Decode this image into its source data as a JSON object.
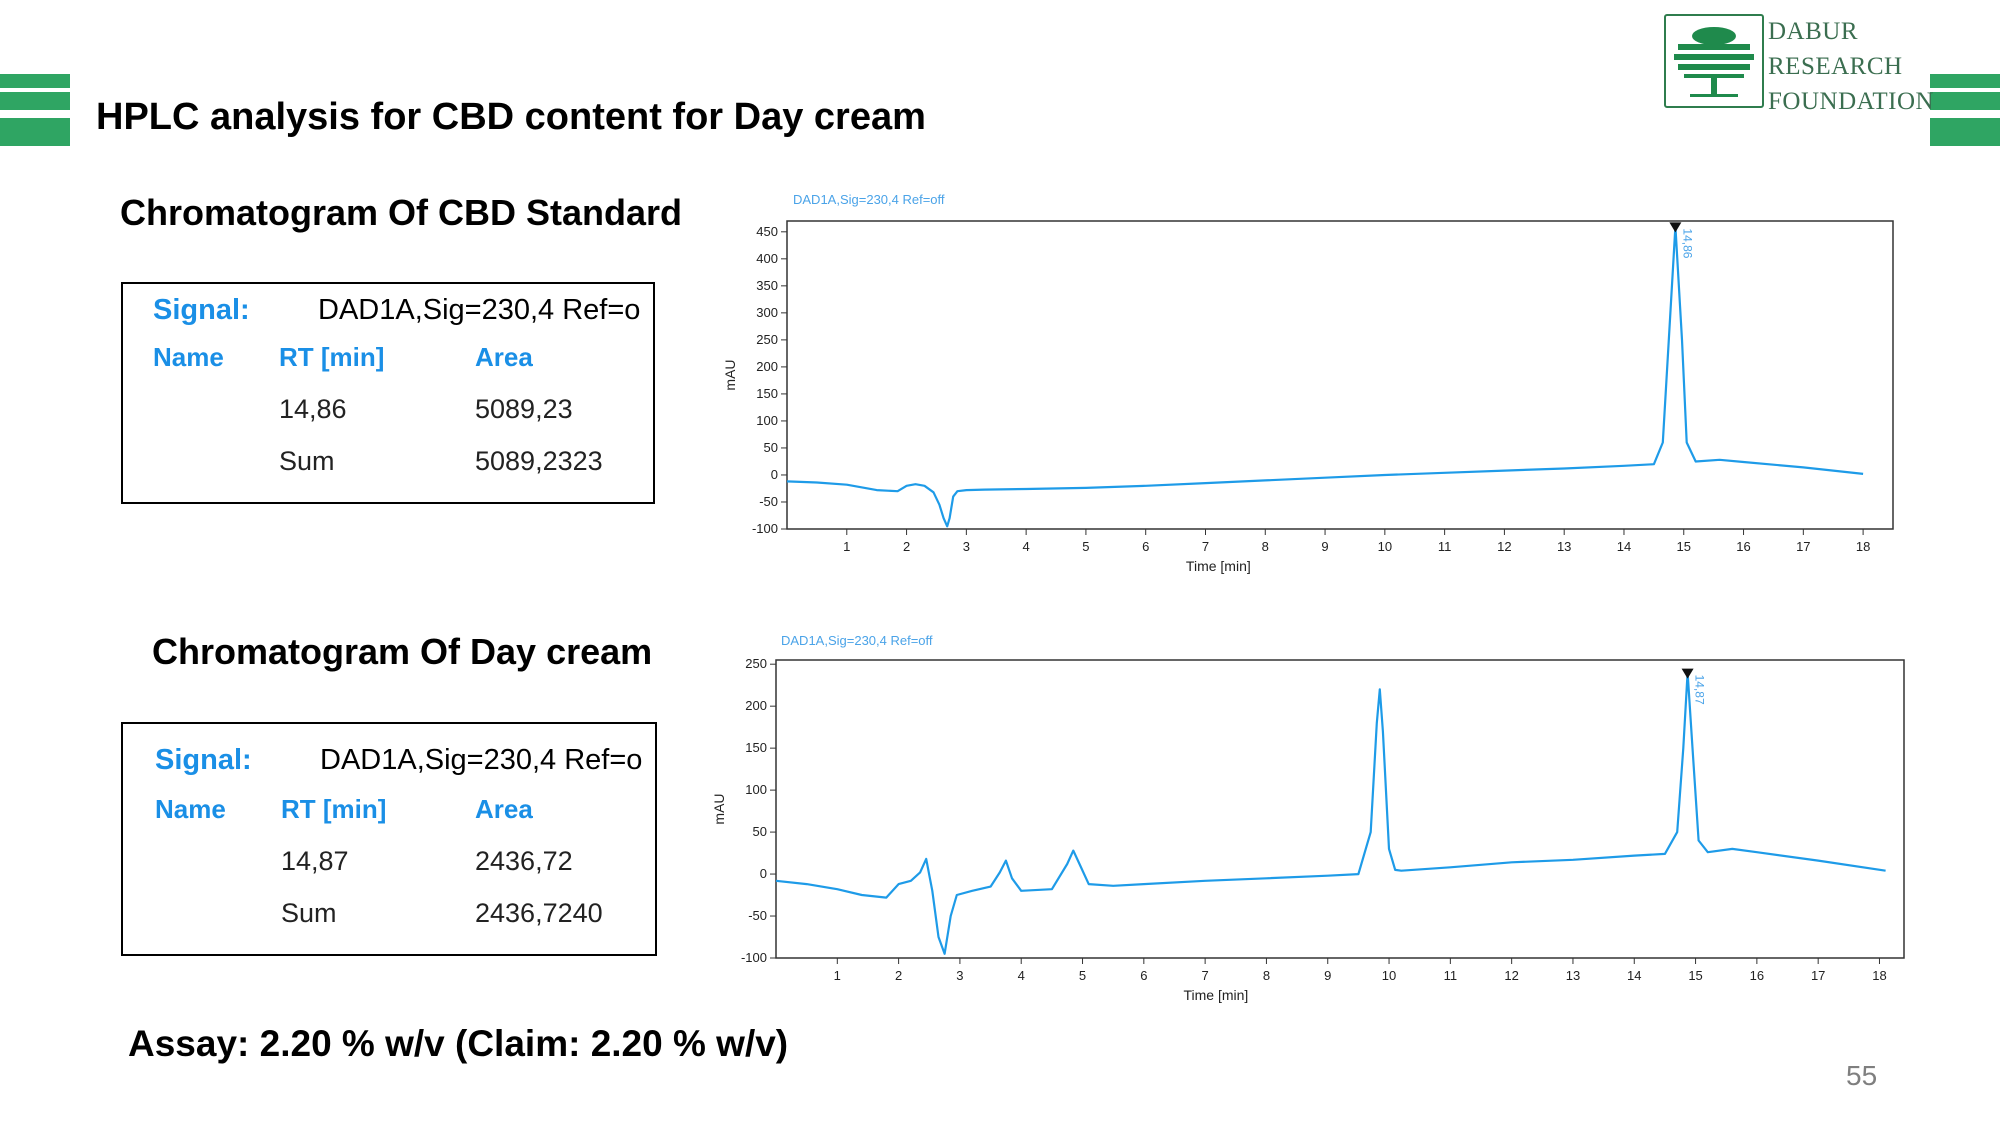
{
  "slide": {
    "title": "HPLC analysis for CBD content for Day cream",
    "assay": "Assay: 2.20 % w/v  (Claim: 2.20 % w/v)",
    "page_number": "55",
    "colors": {
      "accent_green": "#2fa563",
      "trace_blue": "#1e9be8",
      "label_blue": "#1a8fe6"
    }
  },
  "logo": {
    "line1": "DABUR",
    "line2": "RESEARCH",
    "line3": "FOUNDATION",
    "icon": "tree-icon"
  },
  "standard": {
    "section_title": "Chromatogram Of CBD Standard",
    "table": {
      "signal_label": "Signal:",
      "signal_value": "DAD1A,Sig=230,4  Ref=o",
      "col_name": "Name",
      "col_rt": "RT [min]",
      "col_area": "Area",
      "row_rt": "14,86",
      "row_area": "5089,23",
      "sum_label": "Sum",
      "sum_value": "5089,2323"
    }
  },
  "sample": {
    "section_title": "Chromatogram Of Day cream",
    "table": {
      "signal_label": "Signal:",
      "signal_value": "DAD1A,Sig=230,4  Ref=o",
      "col_name": "Name",
      "col_rt": "RT [min]",
      "col_area": "Area",
      "row_rt": "14,87",
      "row_area": "2436,72",
      "sum_label": "Sum",
      "sum_value": "2436,7240"
    }
  },
  "chart_data": [
    {
      "type": "line",
      "title": "DAD1A,Sig=230,4  Ref=off",
      "xlabel": "Time [min]",
      "ylabel": "mAU",
      "xlim": [
        0,
        18.5
      ],
      "ylim": [
        -100,
        470
      ],
      "yticks": [
        -100,
        -50,
        0,
        50,
        100,
        150,
        200,
        250,
        300,
        350,
        400,
        450
      ],
      "xticks": [
        1,
        2,
        3,
        4,
        5,
        6,
        7,
        8,
        9,
        10,
        11,
        12,
        13,
        14,
        15,
        16,
        17,
        18
      ],
      "peak_label": "14,86",
      "series": [
        {
          "x": [
            0,
            0.5,
            1.0,
            1.5,
            1.85,
            2.0,
            2.15,
            2.3,
            2.45,
            2.55,
            2.62,
            2.68,
            2.72,
            2.78,
            2.85,
            3.0,
            3.3,
            4,
            5,
            6,
            7,
            8,
            9,
            10,
            11,
            12,
            13,
            14,
            14.5,
            14.65,
            14.75,
            14.86,
            14.97,
            15.05,
            15.2,
            15.6,
            16,
            17,
            18
          ],
          "y": [
            -12,
            -14,
            -18,
            -28,
            -30,
            -20,
            -17,
            -20,
            -32,
            -55,
            -80,
            -95,
            -80,
            -40,
            -30,
            -28,
            -27,
            -26,
            -24,
            -20,
            -15,
            -10,
            -5,
            0,
            4,
            8,
            12,
            17,
            20,
            60,
            250,
            460,
            250,
            60,
            25,
            28,
            24,
            14,
            2
          ]
        }
      ]
    },
    {
      "type": "line",
      "title": "DAD1A,Sig=230,4  Ref=off",
      "xlabel": "Time [min]",
      "ylabel": "mAU",
      "xlim": [
        0,
        18.4
      ],
      "ylim": [
        -100,
        255
      ],
      "yticks": [
        -100,
        -50,
        0,
        50,
        100,
        150,
        200,
        250
      ],
      "xticks": [
        1,
        2,
        3,
        4,
        5,
        6,
        7,
        8,
        9,
        10,
        11,
        12,
        13,
        14,
        15,
        16,
        17,
        18
      ],
      "peak_label": "14,87",
      "series": [
        {
          "x": [
            0,
            0.5,
            1.0,
            1.4,
            1.8,
            2.0,
            2.2,
            2.35,
            2.45,
            2.55,
            2.65,
            2.75,
            2.85,
            2.95,
            3.2,
            3.5,
            3.65,
            3.75,
            3.85,
            4.0,
            4.5,
            4.75,
            4.85,
            4.95,
            5.1,
            5.5,
            6,
            7,
            8,
            9,
            9.5,
            9.7,
            9.8,
            9.85,
            9.9,
            10.0,
            10.1,
            10.2,
            11,
            12,
            13,
            14,
            14.5,
            14.7,
            14.8,
            14.87,
            14.95,
            15.05,
            15.2,
            15.6,
            16,
            17,
            18.1
          ],
          "y": [
            -8,
            -12,
            -18,
            -25,
            -28,
            -12,
            -8,
            2,
            18,
            -20,
            -75,
            -95,
            -50,
            -25,
            -20,
            -15,
            2,
            16,
            -5,
            -20,
            -18,
            12,
            28,
            12,
            -12,
            -14,
            -12,
            -8,
            -5,
            -2,
            0,
            50,
            180,
            220,
            170,
            30,
            5,
            4,
            8,
            14,
            17,
            22,
            24,
            50,
            150,
            240,
            150,
            40,
            26,
            30,
            26,
            16,
            4
          ]
        }
      ]
    }
  ]
}
